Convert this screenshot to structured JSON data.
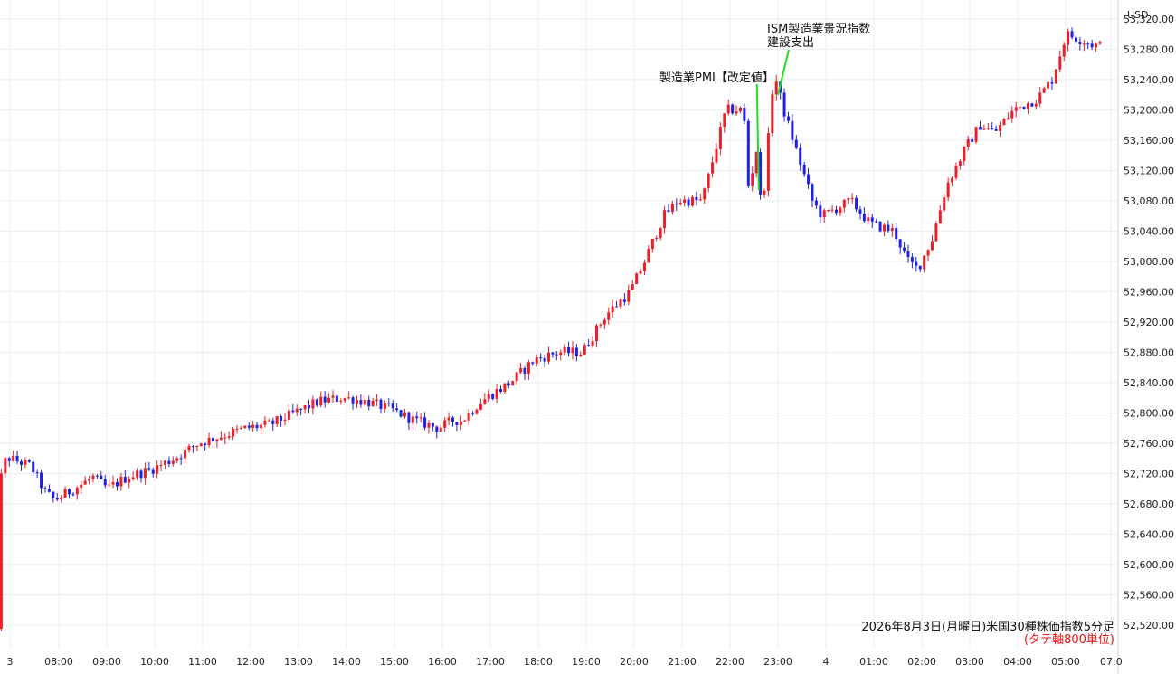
{
  "chart_data": {
    "type": "candlestick",
    "currency_label": "USD",
    "caption": "2026年8月3日(月曜日)米国30種株価指数5分足",
    "caption_sub": "(タテ軸800単位)",
    "ylim": [
      52490,
      53345
    ],
    "y_ticks": [
      "52,520.00",
      "52,560.00",
      "52,600.00",
      "52,640.00",
      "52,680.00",
      "52,720.00",
      "52,760.00",
      "52,800.00",
      "52,840.00",
      "52,880.00",
      "52,920.00",
      "52,960.00",
      "53,000.00",
      "53,040.00",
      "53,080.00",
      "53,120.00",
      "53,160.00",
      "53,200.00",
      "53,240.00",
      "53,280.00",
      "53,320.00"
    ],
    "x_ticks": [
      "3",
      "08:00",
      "09:00",
      "10:00",
      "11:00",
      "12:00",
      "13:00",
      "14:00",
      "15:00",
      "16:00",
      "17:00",
      "18:00",
      "19:00",
      "20:00",
      "21:00",
      "22:00",
      "23:00",
      "4",
      "01:00",
      "02:00",
      "03:00",
      "04:00",
      "05:00",
      "07:0"
    ],
    "anchors": [
      [
        6.55,
        52520
      ],
      [
        6.65,
        52515
      ],
      [
        6.72,
        52725
      ],
      [
        7.05,
        52740
      ],
      [
        7.5,
        52730
      ],
      [
        7.8,
        52695
      ],
      [
        8.0,
        52685
      ],
      [
        8.4,
        52700
      ],
      [
        8.8,
        52715
      ],
      [
        9.1,
        52700
      ],
      [
        9.5,
        52715
      ],
      [
        10.0,
        52725
      ],
      [
        10.5,
        52740
      ],
      [
        11.0,
        52760
      ],
      [
        11.5,
        52770
      ],
      [
        12.0,
        52780
      ],
      [
        12.5,
        52785
      ],
      [
        13.0,
        52800
      ],
      [
        13.5,
        52815
      ],
      [
        14.0,
        52820
      ],
      [
        14.5,
        52815
      ],
      [
        15.0,
        52805
      ],
      [
        15.5,
        52790
      ],
      [
        16.0,
        52780
      ],
      [
        16.3,
        52790
      ],
      [
        16.5,
        52790
      ],
      [
        16.8,
        52810
      ],
      [
        17.0,
        52820
      ],
      [
        17.5,
        52840
      ],
      [
        18.0,
        52870
      ],
      [
        18.5,
        52880
      ],
      [
        19.0,
        52880
      ],
      [
        19.5,
        52930
      ],
      [
        20.0,
        52960
      ],
      [
        20.3,
        53000
      ],
      [
        20.7,
        53060
      ],
      [
        21.0,
        53080
      ],
      [
        21.5,
        53080
      ],
      [
        22.0,
        53200
      ],
      [
        22.3,
        53200
      ],
      [
        22.4,
        53180
      ],
      [
        22.5,
        53060
      ],
      [
        22.6,
        53180
      ],
      [
        22.7,
        53080
      ],
      [
        22.8,
        53100
      ],
      [
        22.9,
        53175
      ],
      [
        23.0,
        53250
      ],
      [
        23.2,
        53200
      ],
      [
        23.5,
        53140
      ],
      [
        23.8,
        53080
      ],
      [
        24.0,
        53060
      ],
      [
        24.3,
        53070
      ],
      [
        24.6,
        53080
      ],
      [
        25.0,
        53050
      ],
      [
        25.5,
        53040
      ],
      [
        25.8,
        53000
      ],
      [
        26.0,
        52990
      ],
      [
        26.3,
        53030
      ],
      [
        26.6,
        53100
      ],
      [
        27.0,
        53150
      ],
      [
        27.3,
        53180
      ],
      [
        27.6,
        53170
      ],
      [
        28.0,
        53200
      ],
      [
        28.5,
        53215
      ],
      [
        28.8,
        53240
      ],
      [
        29.0,
        53280
      ],
      [
        29.1,
        53300
      ],
      [
        29.5,
        53290
      ],
      [
        29.7,
        53285
      ]
    ],
    "annotations": [
      {
        "text": "製造業PMI【改定値】",
        "time": 22.6
      },
      {
        "text": "ISM製造業景況指数",
        "time": 23.0
      },
      {
        "text": "建設支出",
        "time": 23.0
      }
    ],
    "colors": {
      "up": "#e8202a",
      "down": "#2121e0",
      "grid": "#e8edf2",
      "annotation_line": "#22dd22"
    }
  }
}
